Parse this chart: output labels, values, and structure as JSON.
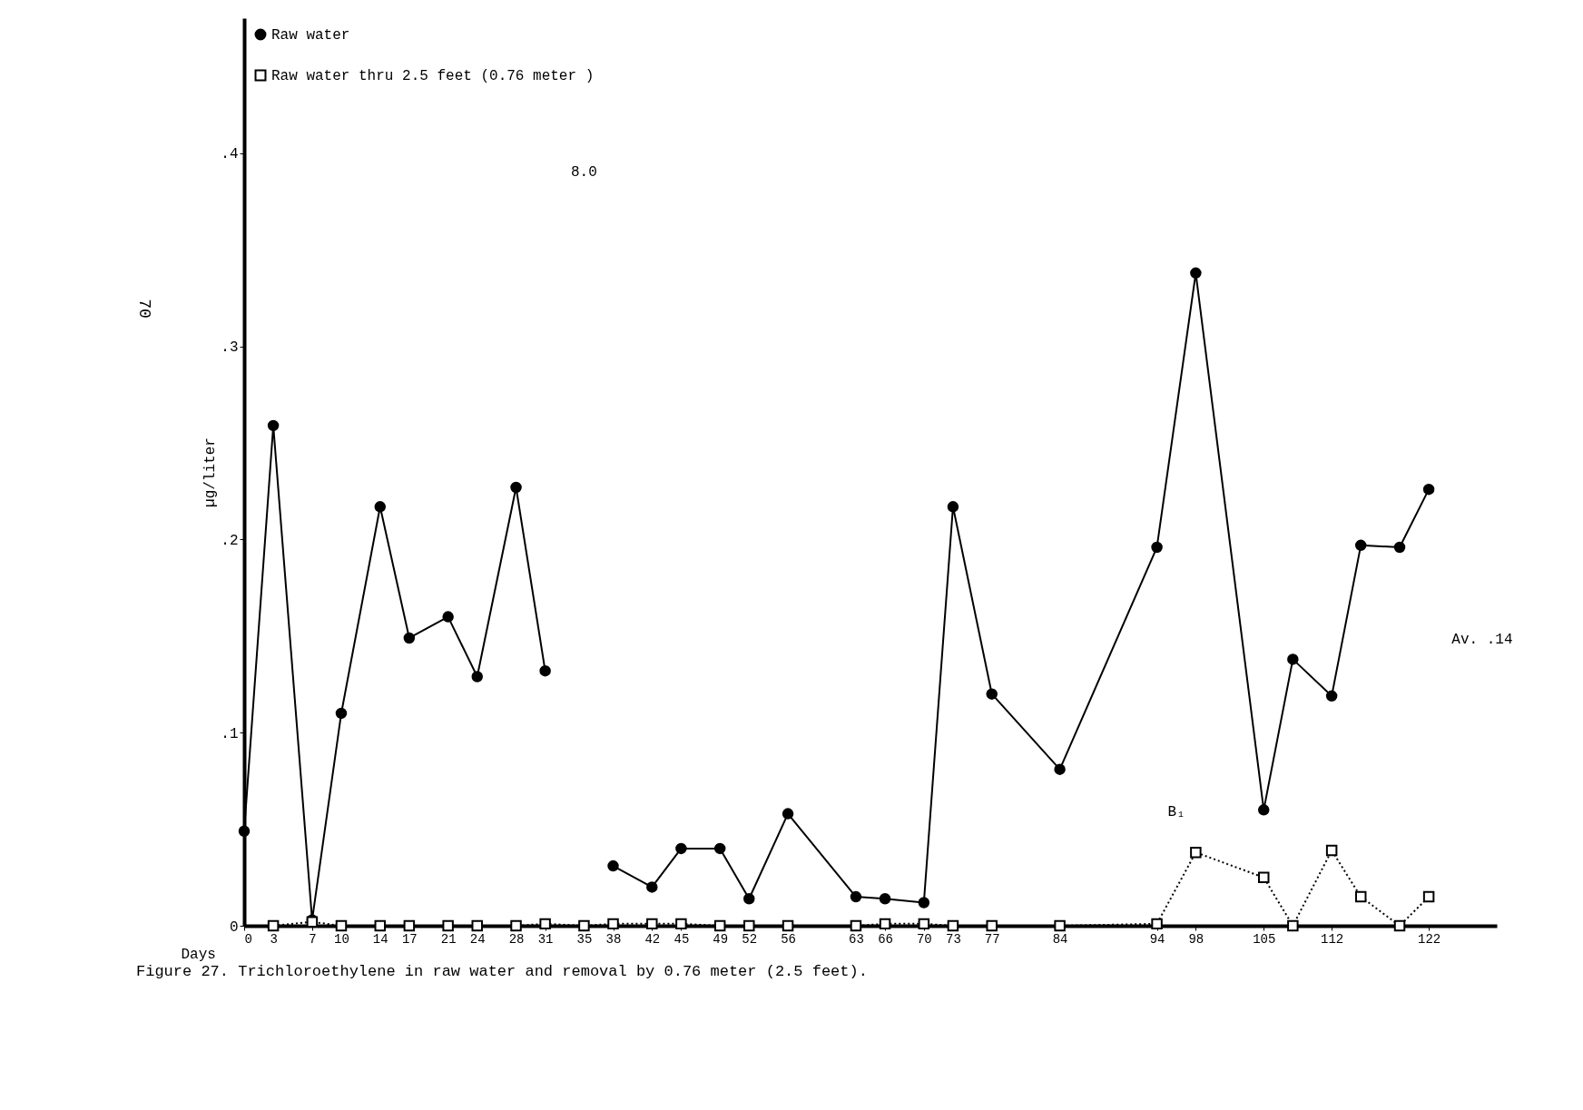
{
  "chart_data": {
    "type": "line",
    "title": "Figure 27.  Trichloroethylene in raw water and removal by 0.76 meter  (2.5 feet).",
    "xlabel": "Days",
    "ylabel": "µg/liter",
    "xlim": [
      0,
      129
    ],
    "ylim": [
      0,
      0.47
    ],
    "xticks": [
      0,
      3,
      7,
      10,
      14,
      17,
      21,
      24,
      28,
      31,
      35,
      38,
      42,
      45,
      49,
      52,
      56,
      63,
      66,
      70,
      73,
      77,
      84,
      94,
      98,
      105,
      112,
      122
    ],
    "yticks": [
      {
        "value": 0,
        "label": "0"
      },
      {
        "value": 0.1,
        "label": ".1"
      },
      {
        "value": 0.2,
        "label": ".2"
      },
      {
        "value": 0.3,
        "label": ".3"
      },
      {
        "value": 0.4,
        "label": ".4"
      }
    ],
    "legend": "top left",
    "grid": false,
    "series": [
      {
        "name": "Raw water",
        "color": "#000000",
        "marker": "circle",
        "line_style": "solid",
        "x": [
          0,
          3,
          7,
          10,
          14,
          17,
          21,
          24,
          28,
          31,
          35,
          38,
          42,
          45,
          49,
          52,
          56,
          63,
          66,
          70,
          73,
          77,
          84,
          94,
          98,
          105,
          108,
          112,
          115,
          119,
          122
        ],
        "values": [
          0.049,
          0.259,
          0.003,
          0.11,
          0.217,
          0.149,
          0.16,
          0.129,
          0.227,
          0.132,
          null,
          0.031,
          0.02,
          0.04,
          0.04,
          0.014,
          0.058,
          0.015,
          0.014,
          0.012,
          0.217,
          0.12,
          0.081,
          0.196,
          0.338,
          0.06,
          0.138,
          0.119,
          0.197,
          0.196,
          0.226
        ]
      },
      {
        "name": "Raw water thru 2.5 feet (0.76 meter )",
        "color": "#000000",
        "marker": "square",
        "line_style": "dotted",
        "x": [
          3,
          7,
          10,
          14,
          17,
          21,
          24,
          28,
          31,
          35,
          38,
          42,
          45,
          49,
          52,
          56,
          63,
          66,
          70,
          73,
          77,
          84,
          94,
          98,
          105,
          108,
          112,
          115,
          119,
          122
        ],
        "values": [
          0,
          0.002,
          0,
          0,
          0,
          0,
          0,
          0,
          0.001,
          0,
          0.001,
          0.001,
          0.001,
          0,
          0,
          0,
          0,
          0.001,
          0.001,
          0,
          0,
          0,
          0.001,
          0.038,
          0.025,
          0,
          0.039,
          0.015,
          0,
          0.015
        ]
      }
    ],
    "annotations": [
      "8.0",
      "B₁",
      "Av. .14",
      "70"
    ]
  }
}
